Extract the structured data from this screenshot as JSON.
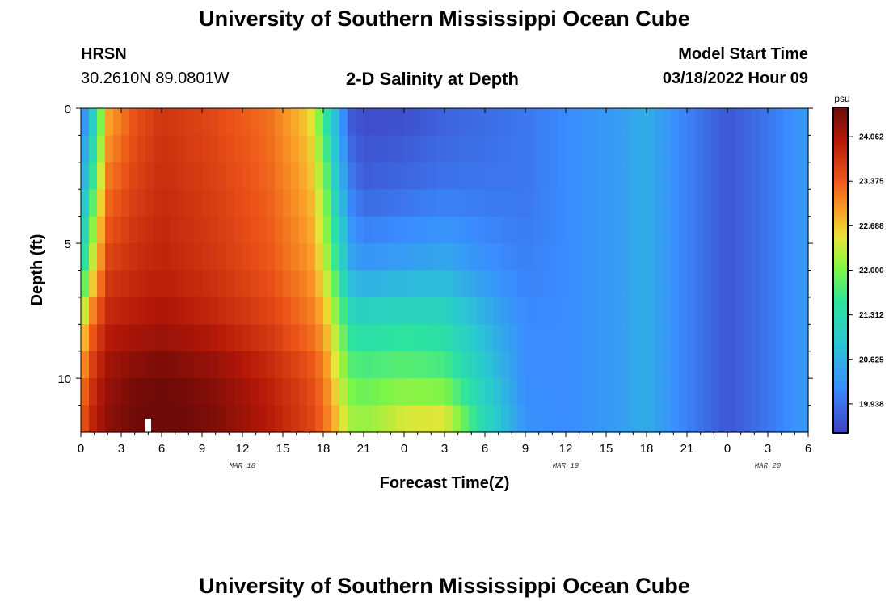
{
  "page": {
    "title": "University of Southern Mississippi Ocean Cube",
    "title_repeat": "University of Southern Mississippi Ocean Cube",
    "station": "HRSN",
    "coords": "30.2610N  89.0801W",
    "subtitle": "2-D Salinity at Depth",
    "model_start_label": "Model Start Time",
    "model_start_value": "03/18/2022 Hour 09"
  },
  "chart_data": {
    "type": "heatmap",
    "title": "2-D Salinity at Depth",
    "xlabel": "Forecast Time(Z)",
    "ylabel": "Depth (ft)",
    "units": "psu",
    "x_range_hours": [
      0,
      54
    ],
    "y_range_ft": [
      0,
      12
    ],
    "x_tick_labels": [
      "0",
      "3",
      "6",
      "9",
      "12",
      "15",
      "18",
      "21",
      "0",
      "3",
      "6",
      "9",
      "12",
      "15",
      "18",
      "21",
      "0",
      "3",
      "6"
    ],
    "y_tick_labels": [
      "0",
      "5",
      "10"
    ],
    "y_tick_values": [
      0,
      5,
      10
    ],
    "date_labels": [
      {
        "text": "MAR 18",
        "hour": 12
      },
      {
        "text": "MAR 19",
        "hour": 36
      },
      {
        "text": "MAR 20",
        "hour": 51
      }
    ],
    "colorbar": {
      "min": 19.5,
      "max": 24.5,
      "tick_labels": [
        "24.062",
        "23.375",
        "22.688",
        "22.000",
        "21.312",
        "20.625",
        "19.938"
      ],
      "tick_values": [
        24.062,
        23.375,
        22.688,
        22.0,
        21.312,
        20.625,
        19.938
      ]
    },
    "profile_hours": [
      0,
      1,
      2,
      4,
      6,
      10,
      14,
      17,
      18,
      19,
      20,
      21,
      24,
      27,
      30,
      33,
      36,
      40,
      42,
      45,
      48,
      51,
      54
    ],
    "profile_depths_ft": [
      0,
      3,
      6,
      8,
      10,
      12
    ],
    "values_psu": [
      [
        19.9,
        20.4,
        21.2,
        22.3,
        23.0,
        23.4
      ],
      [
        21.0,
        21.8,
        22.6,
        23.4,
        23.8,
        24.0
      ],
      [
        22.8,
        23.2,
        23.6,
        23.9,
        24.2,
        24.3
      ],
      [
        23.4,
        23.6,
        23.8,
        24.0,
        24.4,
        24.5
      ],
      [
        23.7,
        23.8,
        23.9,
        24.1,
        24.5,
        24.6
      ],
      [
        23.5,
        23.6,
        23.7,
        23.9,
        24.3,
        24.4
      ],
      [
        23.2,
        23.3,
        23.4,
        23.6,
        23.9,
        24.0
      ],
      [
        22.6,
        22.8,
        23.0,
        23.2,
        23.5,
        23.6
      ],
      [
        21.7,
        22.2,
        22.5,
        22.9,
        23.2,
        23.3
      ],
      [
        20.6,
        21.0,
        21.6,
        22.2,
        22.5,
        22.8
      ],
      [
        19.7,
        20.1,
        20.6,
        21.4,
        21.9,
        22.3
      ],
      [
        19.6,
        19.8,
        20.4,
        21.3,
        21.8,
        22.2
      ],
      [
        19.6,
        19.9,
        20.5,
        21.4,
        21.9,
        22.6
      ],
      [
        19.8,
        20.0,
        20.6,
        21.3,
        21.8,
        22.7
      ],
      [
        19.9,
        20.0,
        20.3,
        20.7,
        21.0,
        21.3
      ],
      [
        20.0,
        20.0,
        20.1,
        20.2,
        20.2,
        20.3
      ],
      [
        20.2,
        20.2,
        20.2,
        20.2,
        20.2,
        20.2
      ],
      [
        20.4,
        20.4,
        20.4,
        20.4,
        20.4,
        20.4
      ],
      [
        20.6,
        20.6,
        20.6,
        20.6,
        20.6,
        20.6
      ],
      [
        20.1,
        20.1,
        20.1,
        20.1,
        20.1,
        20.1
      ],
      [
        19.7,
        19.7,
        19.7,
        19.7,
        19.7,
        19.7
      ],
      [
        20.0,
        20.0,
        20.0,
        20.0,
        20.0,
        20.0
      ],
      [
        20.4,
        20.4,
        20.4,
        20.4,
        20.4,
        20.4
      ]
    ]
  }
}
